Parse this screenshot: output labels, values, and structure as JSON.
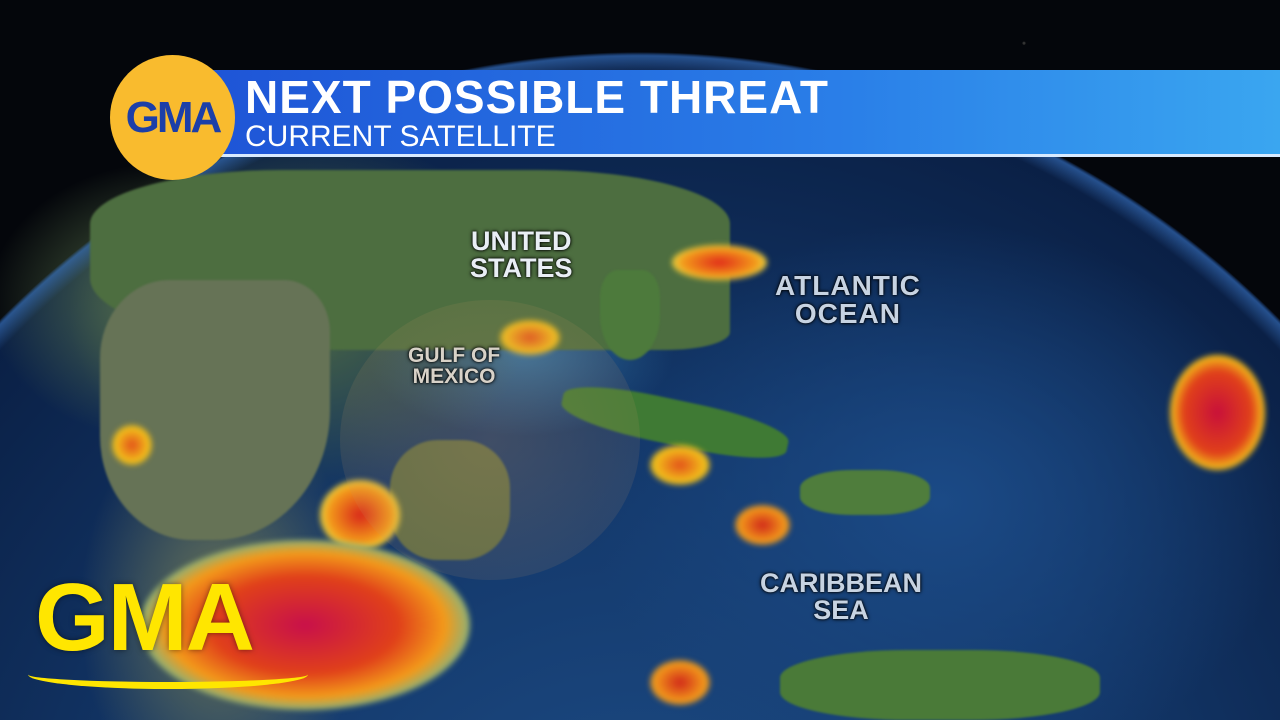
{
  "broadcast": {
    "network_logo": "GMA",
    "title": "NEXT POSSIBLE THREAT",
    "subtitle": "CURRENT SATELLITE",
    "watermark": "GMA",
    "colors": {
      "banner": "#2a7fe8",
      "logo_circle": "#f9bb2e",
      "logo_text": "#1c3fa8",
      "watermark": "#ffe600"
    }
  },
  "map": {
    "type": "satellite-globe",
    "labels": [
      {
        "id": "united-states",
        "lines": [
          "UNITED",
          "STATES"
        ]
      },
      {
        "id": "atlantic-ocean",
        "lines": [
          "ATLANTIC",
          "OCEAN"
        ]
      },
      {
        "id": "gulf-of-mexico",
        "lines": [
          "GULF OF",
          "MEXICO"
        ]
      },
      {
        "id": "caribbean-sea",
        "lines": [
          "CARIBBEAN",
          "SEA"
        ]
      }
    ]
  }
}
